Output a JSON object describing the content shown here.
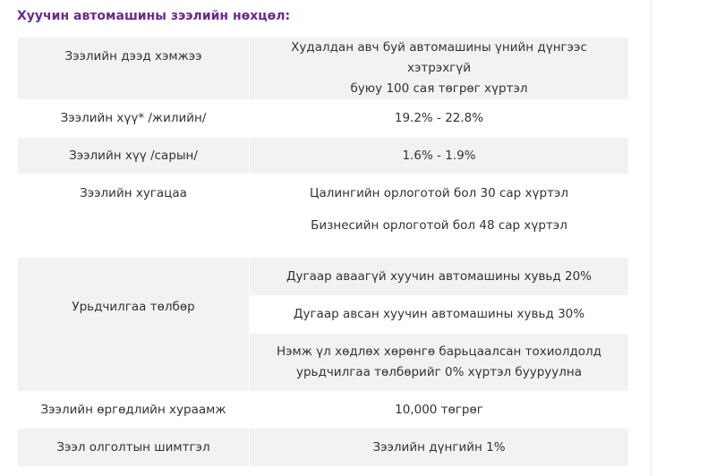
{
  "heading": "Хуучин автомашины зээлийн нөхцөл:",
  "rows": {
    "max_amount": {
      "label": "Зээлийн дээд хэмжээ",
      "value_line1": "Худалдан авч буй автомашины үнийн дүнгээс хэтрэхгүй",
      "value_line2": "буюу 100 сая төгрөг хүртэл"
    },
    "annual_rate": {
      "label": "Зээлийн хүү* /жилийн/",
      "value": "19.2% - 22.8%"
    },
    "monthly_rate": {
      "label": "Зээлийн хүү /сарын/",
      "value": "1.6% - 1.9%"
    },
    "term": {
      "label": "Зээлийн хугацаа",
      "value_line1": "Цалингийн орлоготой бол 30 сар хүртэл",
      "value_line2": "Бизнесийн орлоготой бол 48 сар хүртэл"
    },
    "down_payment": {
      "label": "Урьдчилгаа төлбөр",
      "value_1": "Дугаар аваагүй хуучин автомашины хувьд 20%",
      "value_2": "Дугаар авсан хуучин автомашины хувьд 30%",
      "value_3_line1": "Нэмж үл хөдлөх хөрөнгө барьцаалсан тохиолдолд",
      "value_3_line2": "урьдчилгаа төлбөрийг 0% хүртэл бууруулна"
    },
    "service_fee": {
      "label": "Зээлийн өргөдлийн хураамж",
      "value": "10,000 төгрөг"
    },
    "origination_fee": {
      "label": "Зээл олголтын шимтгэл",
      "value": "Зээлийн дүнгийн 1%"
    }
  }
}
